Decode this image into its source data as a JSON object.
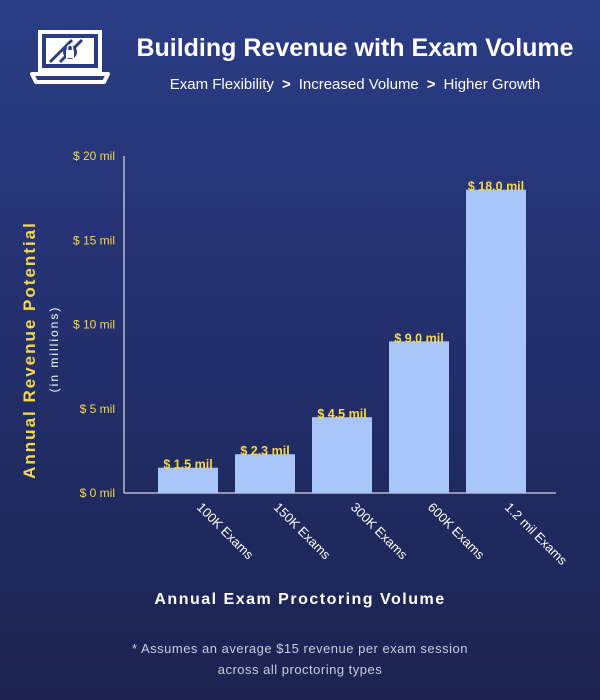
{
  "header": {
    "title": "Building Revenue with Exam Volume",
    "subtitle_steps": [
      "Exam Flexibility",
      "Increased Volume",
      "Higher Growth"
    ],
    "separator": ">"
  },
  "logo": {
    "icon": "laptop-lock-icon"
  },
  "colors": {
    "bar": "#a9c6fb",
    "data_label": "#f5d94a",
    "axis_title": "#f5d94a",
    "axis_line": "#ffffff"
  },
  "chart_data": {
    "type": "bar",
    "categories": [
      "100K Exams",
      "150K Exams",
      "300K Exams",
      "600K Exams",
      "1.2 mil Exams"
    ],
    "values": [
      1.5,
      2.3,
      4.5,
      9.0,
      18.0
    ],
    "data_labels": [
      "$ 1.5 mil",
      "$ 2.3 mil",
      "$ 4.5 mil",
      "$ 9.0 mil",
      "$ 18.0 mil"
    ],
    "yticks": [
      0,
      5,
      10,
      15,
      20
    ],
    "ytick_labels": [
      "$ 0 mil",
      "$ 5 mil",
      "$ 10 mil",
      "$ 15 mil",
      "$ 20 mil"
    ],
    "ylim": [
      0,
      20
    ],
    "ylabel": "Annual Revenue Potential",
    "ylabel_sub": "(in millions)",
    "xlabel": "Annual Exam Proctoring Volume",
    "grid": false,
    "legend": "none"
  },
  "footnote": {
    "line1": "* Assumes an average $15 revenue per exam session",
    "line2": "across all proctoring types"
  }
}
